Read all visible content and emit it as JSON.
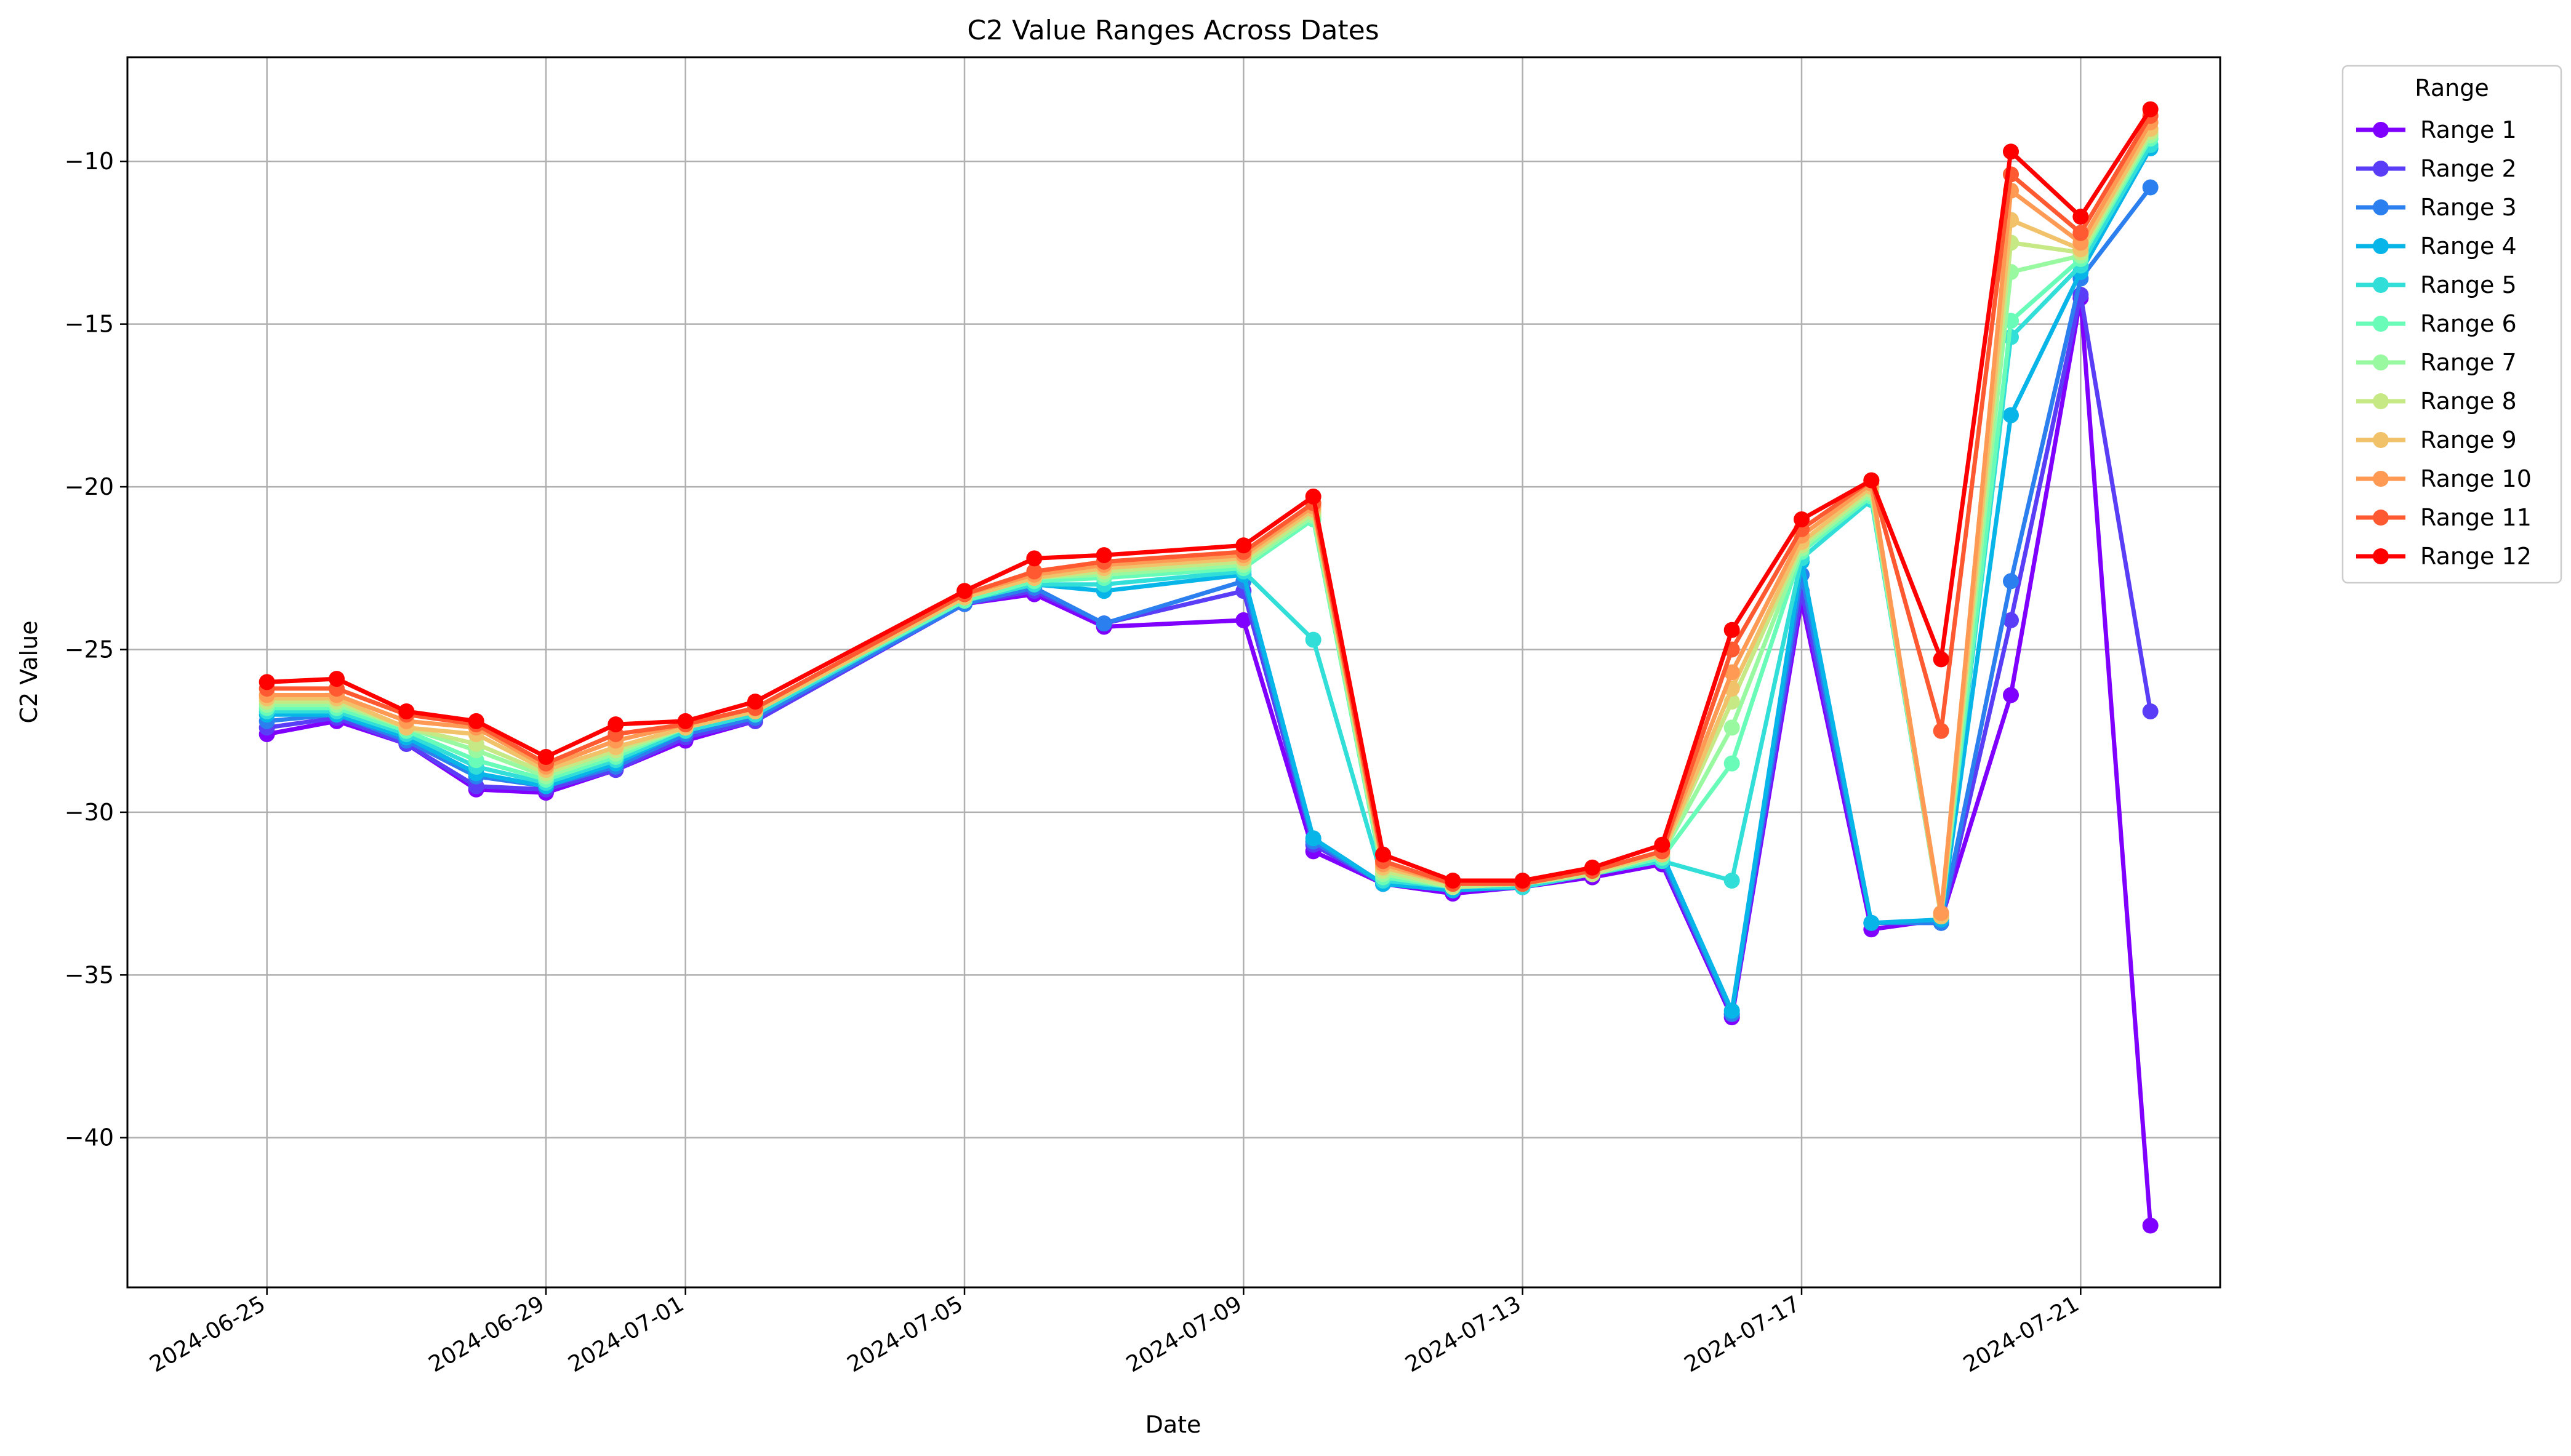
{
  "chart_data": {
    "type": "line",
    "title": "C2 Value Ranges Across Dates",
    "xlabel": "Date",
    "ylabel": "C2 Value",
    "x": [
      "2024-06-25",
      "2024-06-26",
      "2024-06-27",
      "2024-06-28",
      "2024-06-29",
      "2024-06-30",
      "2024-07-01",
      "2024-07-02",
      "2024-07-05",
      "2024-07-06",
      "2024-07-07",
      "2024-07-09",
      "2024-07-10",
      "2024-07-11",
      "2024-07-12",
      "2024-07-13",
      "2024-07-14",
      "2024-07-15",
      "2024-07-16",
      "2024-07-17",
      "2024-07-18",
      "2024-07-19",
      "2024-07-20",
      "2024-07-21",
      "2024-07-22"
    ],
    "xlim": [
      "2024-06-23",
      "2024-07-23"
    ],
    "xticks": [
      "2024-06-25",
      "2024-06-29",
      "2024-07-01",
      "2024-07-05",
      "2024-07-09",
      "2024-07-13",
      "2024-07-17",
      "2024-07-21"
    ],
    "ylim": [
      -44.6,
      -6.8
    ],
    "yticks": [
      -40,
      -35,
      -30,
      -25,
      -20,
      -15,
      -10
    ],
    "ytick_labels": [
      "−40",
      "−35",
      "−30",
      "−25",
      "−20",
      "−15",
      "−10"
    ],
    "grid": true,
    "legend": {
      "title": "Range",
      "placement": "outside-top-right"
    },
    "series": [
      {
        "name": "Range 1",
        "color": "#7f00ff",
        "values": [
          -27.6,
          -27.2,
          -27.9,
          -29.3,
          -29.4,
          -28.7,
          -27.8,
          -27.2,
          -23.6,
          -23.3,
          -24.3,
          -24.1,
          -31.2,
          -32.2,
          -32.5,
          -32.3,
          -32.0,
          -31.6,
          -36.3,
          -23.5,
          -33.6,
          -33.3,
          -26.4,
          -14.2,
          -42.7
        ]
      },
      {
        "name": "Range 2",
        "color": "#5a3df7",
        "values": [
          -27.4,
          -27.1,
          -27.9,
          -29.2,
          -29.3,
          -28.7,
          -27.7,
          -27.2,
          -23.6,
          -23.2,
          -24.2,
          -23.2,
          -31.0,
          -32.2,
          -32.4,
          -32.3,
          -31.9,
          -31.5,
          -36.2,
          -23.2,
          -33.4,
          -33.4,
          -24.1,
          -14.1,
          -26.9
        ]
      },
      {
        "name": "Range 3",
        "color": "#2c7fee",
        "values": [
          -27.2,
          -27.0,
          -27.8,
          -28.9,
          -29.2,
          -28.6,
          -27.6,
          -27.1,
          -23.6,
          -23.1,
          -24.2,
          -22.9,
          -30.9,
          -32.2,
          -32.4,
          -32.3,
          -31.9,
          -31.4,
          -36.2,
          -22.7,
          -33.4,
          -33.4,
          -22.9,
          -13.6,
          -10.8
        ]
      },
      {
        "name": "Range 4",
        "color": "#08b5e8",
        "values": [
          -27.0,
          -27.0,
          -27.7,
          -28.8,
          -29.2,
          -28.5,
          -27.5,
          -27.0,
          -23.5,
          -23.0,
          -23.2,
          -22.7,
          -30.8,
          -32.2,
          -32.4,
          -32.3,
          -31.9,
          -31.3,
          -36.1,
          -22.3,
          -33.4,
          -33.3,
          -17.8,
          -13.4,
          -9.6
        ]
      },
      {
        "name": "Range 5",
        "color": "#31dfd8",
        "values": [
          -26.9,
          -26.9,
          -27.6,
          -28.6,
          -29.1,
          -28.4,
          -27.5,
          -27.0,
          -23.5,
          -23.0,
          -23.0,
          -22.6,
          -24.7,
          -32.1,
          -32.3,
          -32.3,
          -31.9,
          -31.5,
          -32.1,
          -22.2,
          -20.4,
          -33.2,
          -15.4,
          -13.2,
          -9.5
        ]
      },
      {
        "name": "Range 6",
        "color": "#68fcb8",
        "values": [
          -26.8,
          -26.8,
          -27.5,
          -28.4,
          -29.0,
          -28.3,
          -27.4,
          -26.9,
          -23.5,
          -22.9,
          -22.8,
          -22.5,
          -21.0,
          -32.0,
          -32.3,
          -32.2,
          -31.9,
          -31.4,
          -28.5,
          -22.0,
          -20.3,
          -33.2,
          -14.9,
          -13.0,
          -9.3
        ]
      },
      {
        "name": "Range 7",
        "color": "#98f9a0",
        "values": [
          -26.7,
          -26.7,
          -27.4,
          -28.1,
          -28.9,
          -28.2,
          -27.4,
          -26.9,
          -23.4,
          -22.8,
          -22.7,
          -22.4,
          -20.9,
          -31.9,
          -32.3,
          -32.2,
          -31.9,
          -31.3,
          -27.4,
          -21.9,
          -20.2,
          -33.2,
          -13.4,
          -12.9,
          -9.2
        ]
      },
      {
        "name": "Range 8",
        "color": "#c6e985",
        "values": [
          -26.6,
          -26.6,
          -27.4,
          -27.9,
          -28.8,
          -28.1,
          -27.4,
          -26.9,
          -23.4,
          -22.8,
          -22.6,
          -22.3,
          -20.8,
          -31.8,
          -32.3,
          -32.2,
          -31.9,
          -31.3,
          -26.6,
          -21.8,
          -20.1,
          -33.2,
          -12.5,
          -12.8,
          -9.1
        ]
      },
      {
        "name": "Range 9",
        "color": "#f2c26b",
        "values": [
          -26.5,
          -26.5,
          -27.4,
          -27.6,
          -28.7,
          -28.0,
          -27.4,
          -26.9,
          -23.4,
          -22.8,
          -22.5,
          -22.2,
          -20.7,
          -31.7,
          -32.2,
          -32.2,
          -31.8,
          -31.3,
          -26.2,
          -21.7,
          -20.0,
          -33.2,
          -11.8,
          -12.7,
          -9.0
        ]
      },
      {
        "name": "Range 10",
        "color": "#fe9a54",
        "values": [
          -26.4,
          -26.4,
          -27.2,
          -27.4,
          -28.6,
          -27.8,
          -27.3,
          -26.8,
          -23.3,
          -22.7,
          -22.4,
          -22.1,
          -20.6,
          -31.6,
          -32.2,
          -32.2,
          -31.8,
          -31.2,
          -25.7,
          -21.5,
          -19.9,
          -33.1,
          -10.9,
          -12.5,
          -8.8
        ]
      },
      {
        "name": "Range 11",
        "color": "#ff5931",
        "values": [
          -26.2,
          -26.2,
          -27.0,
          -27.3,
          -28.5,
          -27.6,
          -27.3,
          -26.8,
          -23.3,
          -22.6,
          -22.3,
          -22.0,
          -20.5,
          -31.5,
          -32.2,
          -32.2,
          -31.8,
          -31.2,
          -25.0,
          -21.3,
          -19.8,
          -27.5,
          -10.4,
          -12.2,
          -8.6
        ]
      },
      {
        "name": "Range 12",
        "color": "#ff0000",
        "values": [
          -26.0,
          -25.9,
          -26.9,
          -27.2,
          -28.3,
          -27.3,
          -27.2,
          -26.6,
          -23.2,
          -22.2,
          -22.1,
          -21.8,
          -20.3,
          -31.3,
          -32.1,
          -32.1,
          -31.7,
          -31.0,
          -24.4,
          -21.0,
          -19.8,
          -25.3,
          -9.7,
          -11.7,
          -8.4
        ]
      }
    ]
  }
}
